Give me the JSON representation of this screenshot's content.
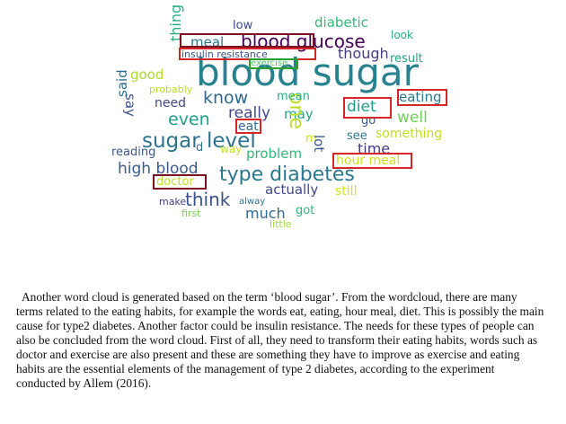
{
  "wordcloud": {
    "words": [
      {
        "id": "blood-sugar",
        "text": "blood sugar",
        "color": "#26828e"
      },
      {
        "id": "type-diabetes",
        "text": "type diabetes",
        "color": "#2a788e"
      },
      {
        "id": "sugar-level",
        "text": "sugar level",
        "color": "#2c728e"
      },
      {
        "id": "blood-glucose",
        "text": "blood glucose",
        "color": "#440154"
      },
      {
        "id": "know",
        "text": "know",
        "color": "#31688e"
      },
      {
        "id": "even",
        "text": "even",
        "color": "#1f9e89"
      },
      {
        "id": "think",
        "text": "think",
        "color": "#3b528b"
      },
      {
        "id": "high-blood",
        "text": "high blood",
        "color": "#365c8d"
      },
      {
        "id": "really",
        "text": "really",
        "color": "#3e4a89"
      },
      {
        "id": "may",
        "text": "may",
        "color": "#22a884"
      },
      {
        "id": "one",
        "text": "one",
        "color": "#bddf26"
      },
      {
        "id": "diet",
        "text": "diet",
        "color": "#1f9e89"
      },
      {
        "id": "eating",
        "text": "eating",
        "color": "#2a788e"
      },
      {
        "id": "well",
        "text": "well",
        "color": "#6ece58"
      },
      {
        "id": "problem",
        "text": "problem",
        "color": "#35b779"
      },
      {
        "id": "actually",
        "text": "actually",
        "color": "#3e4989"
      },
      {
        "id": "still",
        "text": "still",
        "color": "#d2e21b"
      },
      {
        "id": "much",
        "text": "much",
        "color": "#31688e"
      },
      {
        "id": "got",
        "text": "got",
        "color": "#35b779"
      },
      {
        "id": "little",
        "text": "little",
        "color": "#a0da39"
      },
      {
        "id": "diabetic",
        "text": "diabetic",
        "color": "#35b779"
      },
      {
        "id": "low",
        "text": "low",
        "color": "#3e4989"
      },
      {
        "id": "look",
        "text": "look",
        "color": "#25ac82"
      },
      {
        "id": "though",
        "text": "though",
        "color": "#433e85"
      },
      {
        "id": "result",
        "text": "result",
        "color": "#20a386"
      },
      {
        "id": "meal",
        "text": "meal",
        "color": "#2c728e"
      },
      {
        "id": "thing",
        "text": "thing",
        "color": "#27ad81"
      },
      {
        "id": "good",
        "text": "good",
        "color": "#addc30"
      },
      {
        "id": "probably",
        "text": "probably",
        "color": "#b5de2b"
      },
      {
        "id": "need",
        "text": "need",
        "color": "#3f4788"
      },
      {
        "id": "say",
        "text": "say",
        "color": "#3b528b"
      },
      {
        "id": "said",
        "text": "said",
        "color": "#2e6e8e"
      },
      {
        "id": "mean",
        "text": "mean",
        "color": "#27ad81"
      },
      {
        "id": "eat",
        "text": "eat",
        "color": "#31688e"
      },
      {
        "id": "go",
        "text": "go",
        "color": "#39568c"
      },
      {
        "id": "see",
        "text": "see",
        "color": "#2a788e"
      },
      {
        "id": "something",
        "text": "something",
        "color": "#c0df25"
      },
      {
        "id": "m",
        "text": "m",
        "color": "#d8e219"
      },
      {
        "id": "lot",
        "text": "lot",
        "color": "#38588c"
      },
      {
        "id": "time",
        "text": "time",
        "color": "#433d84"
      },
      {
        "id": "hour-meal",
        "text": "hour meal",
        "color": "#d0e11c"
      },
      {
        "id": "way",
        "text": "way",
        "color": "#c2df23"
      },
      {
        "id": "d",
        "text": "d",
        "color": "#2c728e"
      },
      {
        "id": "reading",
        "text": "reading",
        "color": "#39568c"
      },
      {
        "id": "doctor",
        "text": "doctor",
        "color": "#bddf26"
      },
      {
        "id": "make",
        "text": "make",
        "color": "#424086"
      },
      {
        "id": "alway",
        "text": "alway",
        "color": "#2c728e"
      },
      {
        "id": "first",
        "text": "first",
        "color": "#75d054"
      },
      {
        "id": "insulin-resistance",
        "text": "insulin resistance",
        "color": "#3b528b"
      },
      {
        "id": "exercise",
        "text": "exercise",
        "color": "#52c569"
      }
    ],
    "highlight_colors": {
      "red": "#d62728",
      "green": "#2ca02c",
      "dark_red": "#7a1020"
    }
  },
  "paragraph": "Another word cloud is generated based on the term ‘blood sugar’. From the wordcloud, there are many terms related to the eating habits, for example the words eat, eating, hour meal, diet. This is possibly the main cause for type2 diabetes. Another factor could be insulin resistance. The needs for these types of people can also be concluded from the word cloud. First of all, they need to transform their eating habits, words such as doctor and exercise are also present and these are something they have to improve as exercise and eating habits are the essential elements of the management of type 2 diabetes, according to the experiment conducted by Allem (2016)."
}
